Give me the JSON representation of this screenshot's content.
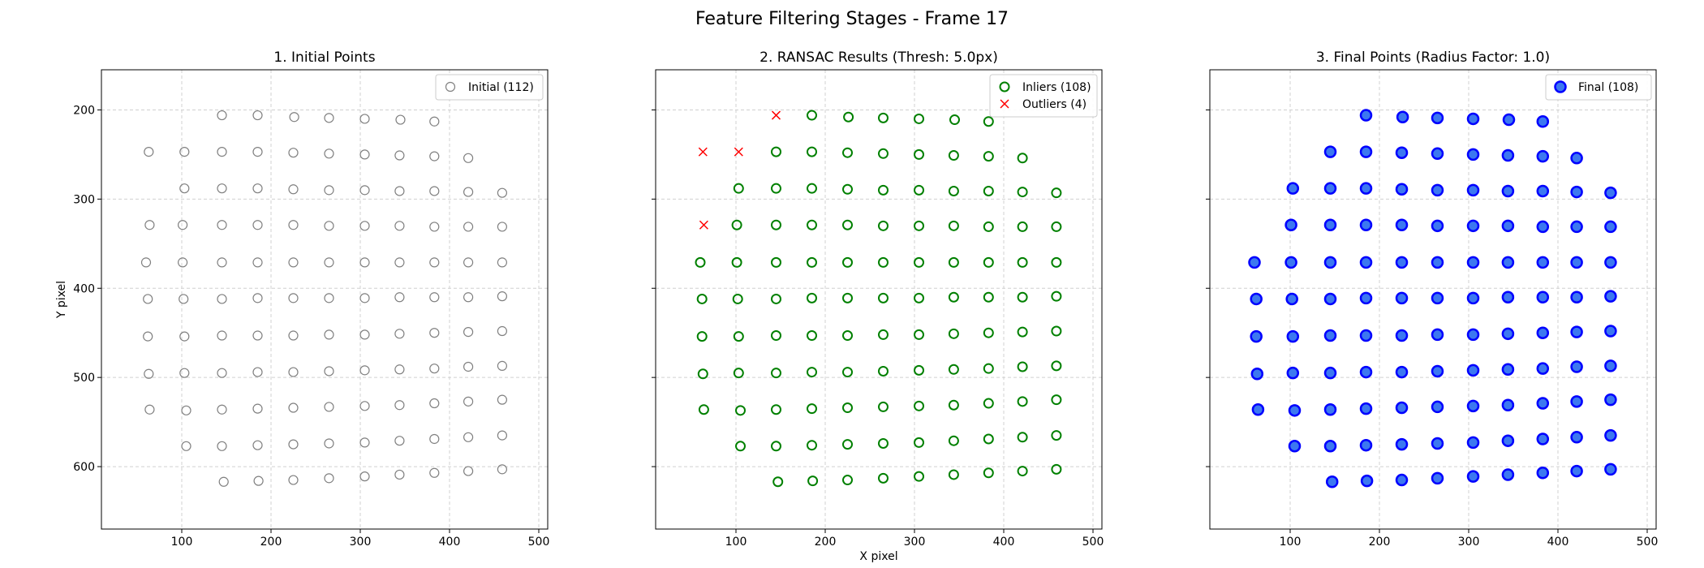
{
  "figure": {
    "suptitle": "Feature Filtering Stages - Frame 17"
  },
  "chart_data": [
    {
      "type": "scatter",
      "title": "1. Initial Points",
      "xlabel": "",
      "ylabel": "Y pixel",
      "xlim": [
        10,
        510
      ],
      "ylim": [
        670,
        155
      ],
      "y_inverted": true,
      "xticks": [
        100,
        200,
        300,
        400,
        500
      ],
      "yticks": [
        200,
        300,
        400,
        500,
        600
      ],
      "grid": true,
      "legend_position": "upper right",
      "series": [
        {
          "name": "Initial (112)",
          "marker": "circle-open",
          "color": "#808080",
          "groups": [
            "row0",
            "row1",
            "row2",
            "row3",
            "row4",
            "row5",
            "row6",
            "row7",
            "row8",
            "row9",
            "row10",
            "out"
          ]
        }
      ]
    },
    {
      "type": "scatter",
      "title": "2. RANSAC Results (Thresh: 5.0px)",
      "xlabel": "X pixel",
      "ylabel": "",
      "xlim": [
        10,
        510
      ],
      "ylim": [
        670,
        155
      ],
      "y_inverted": true,
      "xticks": [
        100,
        200,
        300,
        400,
        500
      ],
      "yticks": [
        200,
        300,
        400,
        500,
        600
      ],
      "grid": true,
      "legend_position": "upper right",
      "series": [
        {
          "name": "Inliers (108)",
          "marker": "circle-open",
          "color": "#008000",
          "groups": [
            "row0",
            "row1",
            "row2",
            "row3",
            "row4",
            "row5",
            "row6",
            "row7",
            "row8",
            "row9",
            "row10"
          ]
        },
        {
          "name": "Outliers (4)",
          "marker": "x",
          "color": "#ff0000",
          "groups": [
            "out"
          ]
        }
      ]
    },
    {
      "type": "scatter",
      "title": "3. Final Points (Radius Factor: 1.0)",
      "xlabel": "",
      "ylabel": "",
      "xlim": [
        10,
        510
      ],
      "ylim": [
        670,
        155
      ],
      "y_inverted": true,
      "xticks": [
        100,
        200,
        300,
        400,
        500
      ],
      "yticks": [
        200,
        300,
        400,
        500,
        600
      ],
      "grid": true,
      "legend_position": "upper right",
      "series": [
        {
          "name": "Final (108)",
          "marker": "circle-filled",
          "color": "#0000ff",
          "fill": "#3c78f0",
          "groups": [
            "row0",
            "row1",
            "row2",
            "row3",
            "row4",
            "row5",
            "row6",
            "row7",
            "row8",
            "row9",
            "row10"
          ]
        }
      ]
    }
  ],
  "point_sets": {
    "row0": [
      [
        185,
        206
      ],
      [
        226,
        208
      ],
      [
        265,
        209
      ],
      [
        305,
        210
      ],
      [
        345,
        211
      ],
      [
        383,
        213
      ]
    ],
    "row1": [
      [
        145,
        247
      ],
      [
        185,
        247
      ],
      [
        225,
        248
      ],
      [
        265,
        249
      ],
      [
        305,
        250
      ],
      [
        344,
        251
      ],
      [
        383,
        252
      ],
      [
        421,
        254
      ]
    ],
    "row2": [
      [
        103,
        288
      ],
      [
        145,
        288
      ],
      [
        185,
        288
      ],
      [
        225,
        289
      ],
      [
        265,
        290
      ],
      [
        305,
        290
      ],
      [
        344,
        291
      ],
      [
        383,
        291
      ],
      [
        421,
        292
      ],
      [
        459,
        293
      ]
    ],
    "row3": [
      [
        101,
        329
      ],
      [
        145,
        329
      ],
      [
        185,
        329
      ],
      [
        225,
        329
      ],
      [
        265,
        330
      ],
      [
        305,
        330
      ],
      [
        344,
        330
      ],
      [
        383,
        331
      ],
      [
        421,
        331
      ],
      [
        459,
        331
      ]
    ],
    "row4": [
      [
        60,
        371
      ],
      [
        101,
        371
      ],
      [
        145,
        371
      ],
      [
        185,
        371
      ],
      [
        225,
        371
      ],
      [
        265,
        371
      ],
      [
        305,
        371
      ],
      [
        344,
        371
      ],
      [
        383,
        371
      ],
      [
        421,
        371
      ],
      [
        459,
        371
      ]
    ],
    "row5": [
      [
        62,
        412
      ],
      [
        102,
        412
      ],
      [
        145,
        412
      ],
      [
        185,
        411
      ],
      [
        225,
        411
      ],
      [
        265,
        411
      ],
      [
        305,
        411
      ],
      [
        344,
        410
      ],
      [
        383,
        410
      ],
      [
        421,
        410
      ],
      [
        459,
        409
      ]
    ],
    "row6": [
      [
        62,
        454
      ],
      [
        103,
        454
      ],
      [
        145,
        453
      ],
      [
        185,
        453
      ],
      [
        225,
        453
      ],
      [
        265,
        452
      ],
      [
        305,
        452
      ],
      [
        344,
        451
      ],
      [
        383,
        450
      ],
      [
        421,
        449
      ],
      [
        459,
        448
      ]
    ],
    "row7": [
      [
        63,
        496
      ],
      [
        103,
        495
      ],
      [
        145,
        495
      ],
      [
        185,
        494
      ],
      [
        225,
        494
      ],
      [
        265,
        493
      ],
      [
        305,
        492
      ],
      [
        344,
        491
      ],
      [
        383,
        490
      ],
      [
        421,
        488
      ],
      [
        459,
        487
      ]
    ],
    "row8": [
      [
        64,
        536
      ],
      [
        105,
        537
      ],
      [
        145,
        536
      ],
      [
        185,
        535
      ],
      [
        225,
        534
      ],
      [
        265,
        533
      ],
      [
        305,
        532
      ],
      [
        344,
        531
      ],
      [
        383,
        529
      ],
      [
        421,
        527
      ],
      [
        459,
        525
      ]
    ],
    "row9": [
      [
        105,
        577
      ],
      [
        145,
        577
      ],
      [
        185,
        576
      ],
      [
        225,
        575
      ],
      [
        265,
        574
      ],
      [
        305,
        573
      ],
      [
        344,
        571
      ],
      [
        383,
        569
      ],
      [
        421,
        567
      ],
      [
        459,
        565
      ]
    ],
    "row10": [
      [
        147,
        617
      ],
      [
        186,
        616
      ],
      [
        225,
        615
      ],
      [
        265,
        613
      ],
      [
        305,
        611
      ],
      [
        344,
        609
      ],
      [
        383,
        607
      ],
      [
        421,
        605
      ],
      [
        459,
        603
      ]
    ],
    "out": [
      [
        145,
        206
      ],
      [
        63,
        247
      ],
      [
        103,
        247
      ],
      [
        64,
        329
      ]
    ]
  }
}
